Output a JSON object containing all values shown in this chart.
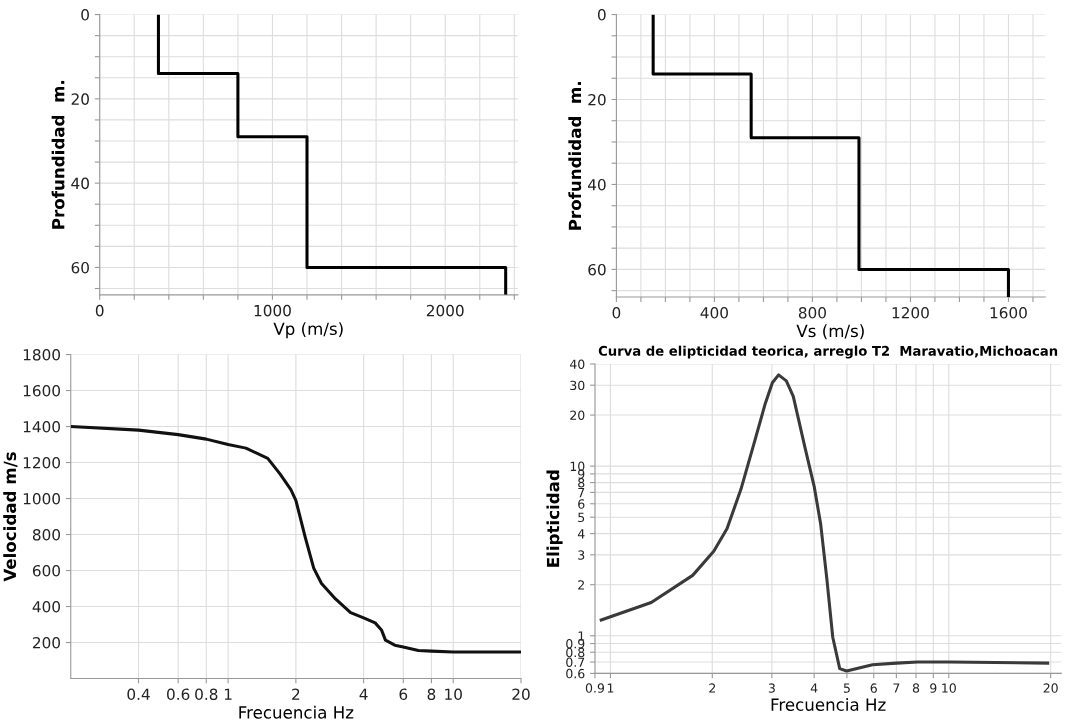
{
  "chart_data": [
    {
      "type": "line",
      "xlabel": "Vp (m/s)",
      "ylabel": "Profundidad  m.",
      "xlim": [
        0,
        2420
      ],
      "ylim": [
        66.5,
        0
      ],
      "xticks": [
        0,
        {
          "value": 200,
          "label": null
        },
        {
          "value": 400,
          "label": null
        },
        {
          "value": 600,
          "label": null
        },
        {
          "value": 800,
          "label": null
        },
        1000,
        {
          "value": 1200,
          "label": null
        },
        {
          "value": 1400,
          "label": null
        },
        {
          "value": 1600,
          "label": null
        },
        {
          "value": 1800,
          "label": null
        },
        2000,
        {
          "value": 2200,
          "label": null
        },
        {
          "value": 2400,
          "label": null
        }
      ],
      "yticks": [
        0,
        {
          "value": 5,
          "label": null
        },
        {
          "value": 10,
          "label": null
        },
        {
          "value": 15,
          "label": null
        },
        20,
        {
          "value": 25,
          "label": null
        },
        {
          "value": 30,
          "label": null
        },
        {
          "value": 35,
          "label": null
        },
        40,
        {
          "value": 45,
          "label": null
        },
        {
          "value": 50,
          "label": null
        },
        {
          "value": 55,
          "label": null
        },
        60,
        {
          "value": 65,
          "label": null
        }
      ],
      "grid": true,
      "series": [
        {
          "color": "#000000",
          "x": [
            340,
            340,
            800,
            800,
            1200,
            1200,
            2350,
            2350
          ],
          "values": [
            0,
            14,
            14,
            29,
            29,
            60,
            60,
            66.5
          ]
        }
      ]
    },
    {
      "type": "line",
      "xlabel": "Vs (m/s)",
      "ylabel": "Profundidad  m.",
      "xlim": [
        0,
        1750
      ],
      "ylim": [
        66.5,
        0
      ],
      "xticks": [
        0,
        {
          "value": 100,
          "label": null
        },
        {
          "value": 200,
          "label": null
        },
        {
          "value": 300,
          "label": null
        },
        400,
        {
          "value": 500,
          "label": null
        },
        {
          "value": 600,
          "label": null
        },
        {
          "value": 700,
          "label": null
        },
        800,
        {
          "value": 900,
          "label": null
        },
        {
          "value": 1000,
          "label": null
        },
        {
          "value": 1100,
          "label": null
        },
        1200,
        {
          "value": 1300,
          "label": null
        },
        {
          "value": 1400,
          "label": null
        },
        {
          "value": 1500,
          "label": null
        },
        1600,
        {
          "value": 1700,
          "label": null
        }
      ],
      "yticks": [
        0,
        {
          "value": 5,
          "label": null
        },
        {
          "value": 10,
          "label": null
        },
        {
          "value": 15,
          "label": null
        },
        20,
        {
          "value": 25,
          "label": null
        },
        {
          "value": 30,
          "label": null
        },
        {
          "value": 35,
          "label": null
        },
        40,
        {
          "value": 45,
          "label": null
        },
        {
          "value": 50,
          "label": null
        },
        {
          "value": 55,
          "label": null
        },
        60,
        {
          "value": 65,
          "label": null
        }
      ],
      "grid": true,
      "series": [
        {
          "color": "#000000",
          "x": [
            150,
            150,
            550,
            550,
            990,
            990,
            1600,
            1600
          ],
          "values": [
            0,
            14,
            14,
            29,
            29,
            60,
            60,
            66.5
          ]
        }
      ]
    },
    {
      "type": "line",
      "xlabel": "Frecuencia Hz",
      "ylabel": "Velocidad m/s",
      "log": "x",
      "xlim": [
        0.2,
        20
      ],
      "ylim": [
        0,
        1800
      ],
      "xticks": [
        0.4,
        0.6,
        0.8,
        1,
        2,
        4,
        6,
        8,
        10,
        20
      ],
      "yticks": [
        200,
        400,
        600,
        800,
        1000,
        1200,
        1400,
        1600,
        1800
      ],
      "grid": true,
      "series": [
        {
          "color": "#111111",
          "x": [
            0.2,
            0.4,
            0.6,
            0.8,
            1,
            1.2,
            1.5,
            1.7,
            1.9,
            2,
            2.2,
            2.4,
            2.6,
            3,
            3.5,
            4,
            4.5,
            4.8,
            5,
            5.5,
            6,
            7,
            8,
            10,
            20
          ],
          "values": [
            1400,
            1380,
            1355,
            1330,
            1300,
            1280,
            1223,
            1137,
            1050,
            990,
            785,
            613,
            528,
            442,
            366,
            337,
            309,
            270,
            213,
            185,
            175,
            156,
            152,
            147,
            147
          ]
        }
      ]
    },
    {
      "type": "line",
      "title": "Curva de elipticidad teorica, arreglo T2  Maravatio,Michoacan",
      "xlabel": "Frecuencia Hz",
      "ylabel": "Elipticidad",
      "log": "xy",
      "xlim": [
        0.9,
        21.5
      ],
      "ylim": [
        0.6,
        40
      ],
      "xticks": [
        0.9,
        1,
        2,
        3,
        4,
        5,
        6,
        7,
        8,
        9,
        10,
        20
      ],
      "yticks": [
        0.6,
        0.7,
        0.8,
        0.9,
        1,
        2,
        3,
        4,
        5,
        6,
        7,
        8,
        9,
        10,
        20,
        30,
        40
      ],
      "grid": true,
      "series": [
        {
          "color": "#3a3a3a",
          "x": [
            0.93,
            1.32,
            1.75,
            2.02,
            2.21,
            2.43,
            2.67,
            2.87,
            3.01,
            3.14,
            3.31,
            3.47,
            3.76,
            4.0,
            4.18,
            4.36,
            4.54,
            4.76,
            4.99,
            5.95,
            7.0,
            8.1,
            10,
            19.8
          ],
          "values": [
            1.23,
            1.57,
            2.27,
            3.15,
            4.27,
            7.3,
            14.1,
            23.5,
            31,
            34.5,
            31.8,
            25.8,
            12.8,
            7.6,
            4.58,
            2.17,
            0.98,
            0.64,
            0.62,
            0.675,
            0.69,
            0.7,
            0.7,
            0.69
          ]
        }
      ]
    }
  ]
}
